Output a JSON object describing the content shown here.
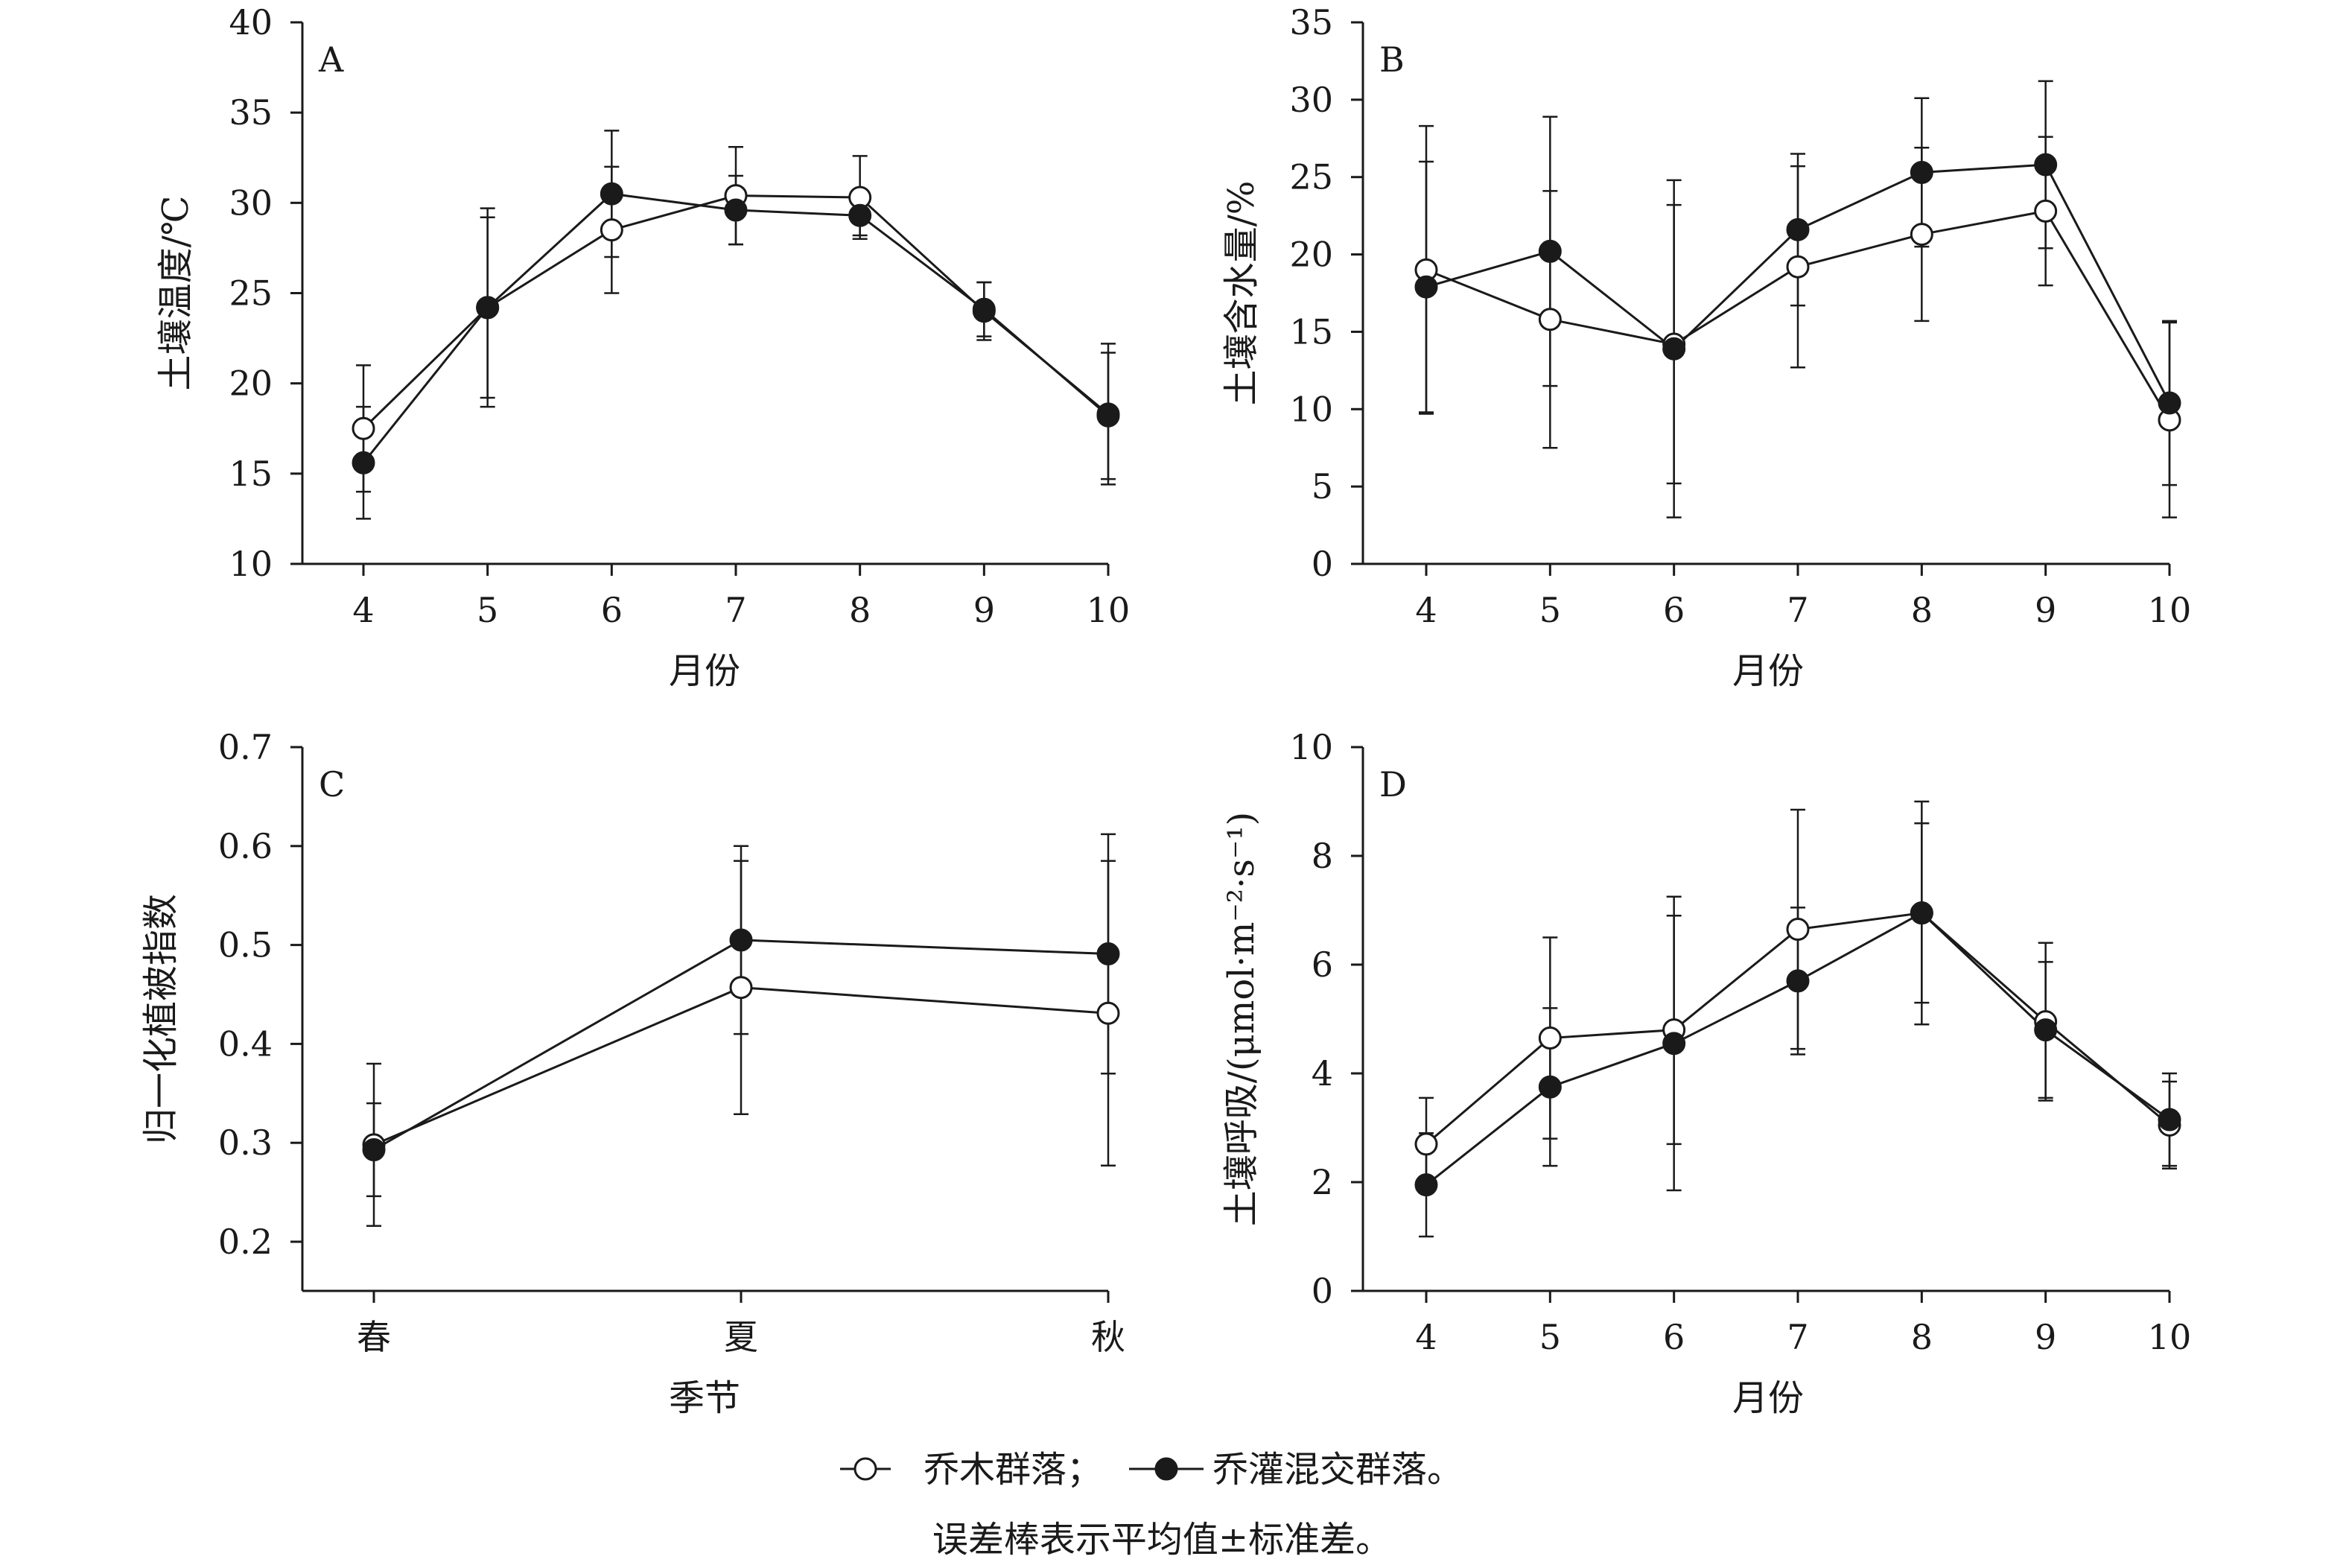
{
  "legend": {
    "items": [
      {
        "label": "乔木群落；",
        "marker": "open"
      },
      {
        "label": "乔灌混交群落。",
        "marker": "filled"
      }
    ]
  },
  "note": "误差棒表示平均值±标准差。",
  "colors": {
    "ink": "#1a1a1a",
    "background": "#ffffff"
  },
  "chart_data": [
    {
      "panel": "A",
      "type": "line",
      "xlabel": "月份",
      "ylabel": "土壤温度/℃",
      "x": [
        "4",
        "5",
        "6",
        "7",
        "8",
        "9",
        "10"
      ],
      "ylim": [
        10,
        40
      ],
      "yticks": [
        10,
        15,
        20,
        25,
        30,
        35,
        40
      ],
      "series": [
        {
          "name": "乔木群落",
          "marker": "open",
          "values": [
            17.5,
            24.2,
            28.5,
            30.4,
            30.3,
            24.0,
            18.3
          ],
          "errors": [
            3.5,
            5.5,
            3.5,
            2.7,
            2.3,
            1.6,
            3.9
          ]
        },
        {
          "name": "乔灌混交群落",
          "marker": "filled",
          "values": [
            15.6,
            24.2,
            30.5,
            29.6,
            29.3,
            24.1,
            18.2
          ],
          "errors": [
            3.1,
            5.0,
            3.5,
            1.9,
            1.1,
            1.5,
            3.5
          ]
        }
      ]
    },
    {
      "panel": "B",
      "type": "line",
      "xlabel": "月份",
      "ylabel": "土壤含水量/%",
      "x": [
        "4",
        "5",
        "6",
        "7",
        "8",
        "9",
        "10"
      ],
      "ylim": [
        0,
        35
      ],
      "yticks": [
        0,
        5,
        10,
        15,
        20,
        25,
        30,
        35
      ],
      "series": [
        {
          "name": "乔木群落",
          "marker": "open",
          "values": [
            19.0,
            15.8,
            14.2,
            19.2,
            21.3,
            22.8,
            9.3
          ],
          "errors": [
            9.3,
            8.3,
            9.0,
            6.5,
            5.6,
            4.8,
            6.3
          ]
        },
        {
          "name": "乔灌混交群落",
          "marker": "filled",
          "values": [
            17.9,
            20.2,
            13.9,
            21.6,
            25.3,
            25.8,
            10.4
          ],
          "errors": [
            8.1,
            8.7,
            10.9,
            4.9,
            4.8,
            5.4,
            5.3
          ]
        }
      ]
    },
    {
      "panel": "C",
      "type": "line",
      "xlabel": "季节",
      "ylabel": "归一化植被指数",
      "x": [
        "春",
        "夏",
        "秋"
      ],
      "ylim": [
        0.15,
        0.7
      ],
      "yticks": [
        0.2,
        0.3,
        0.4,
        0.5,
        0.6,
        0.7
      ],
      "series": [
        {
          "name": "乔木群落",
          "marker": "open",
          "values": [
            0.298,
            0.457,
            0.431
          ],
          "errors": [
            0.082,
            0.128,
            0.154
          ]
        },
        {
          "name": "乔灌混交群落",
          "marker": "filled",
          "values": [
            0.293,
            0.505,
            0.491
          ],
          "errors": [
            0.047,
            0.095,
            0.121
          ]
        }
      ]
    },
    {
      "panel": "D",
      "type": "line",
      "xlabel": "月份",
      "ylabel": "土壤呼吸/(μmol·m⁻²·s⁻¹)",
      "x": [
        "4",
        "5",
        "6",
        "7",
        "8",
        "9",
        "10"
      ],
      "ylim": [
        0,
        10
      ],
      "yticks": [
        0,
        2,
        4,
        6,
        8,
        10
      ],
      "series": [
        {
          "name": "乔木群落",
          "marker": "open",
          "values": [
            2.7,
            4.65,
            4.8,
            6.65,
            6.95,
            4.95,
            3.05
          ],
          "errors": [
            0.85,
            1.85,
            2.1,
            2.2,
            2.05,
            1.45,
            0.8
          ]
        },
        {
          "name": "乔灌混交群落",
          "marker": "filled",
          "values": [
            1.95,
            3.75,
            4.55,
            5.7,
            6.95,
            4.8,
            3.15
          ],
          "errors": [
            0.95,
            1.45,
            2.7,
            1.35,
            1.65,
            1.25,
            0.85
          ]
        }
      ]
    }
  ]
}
